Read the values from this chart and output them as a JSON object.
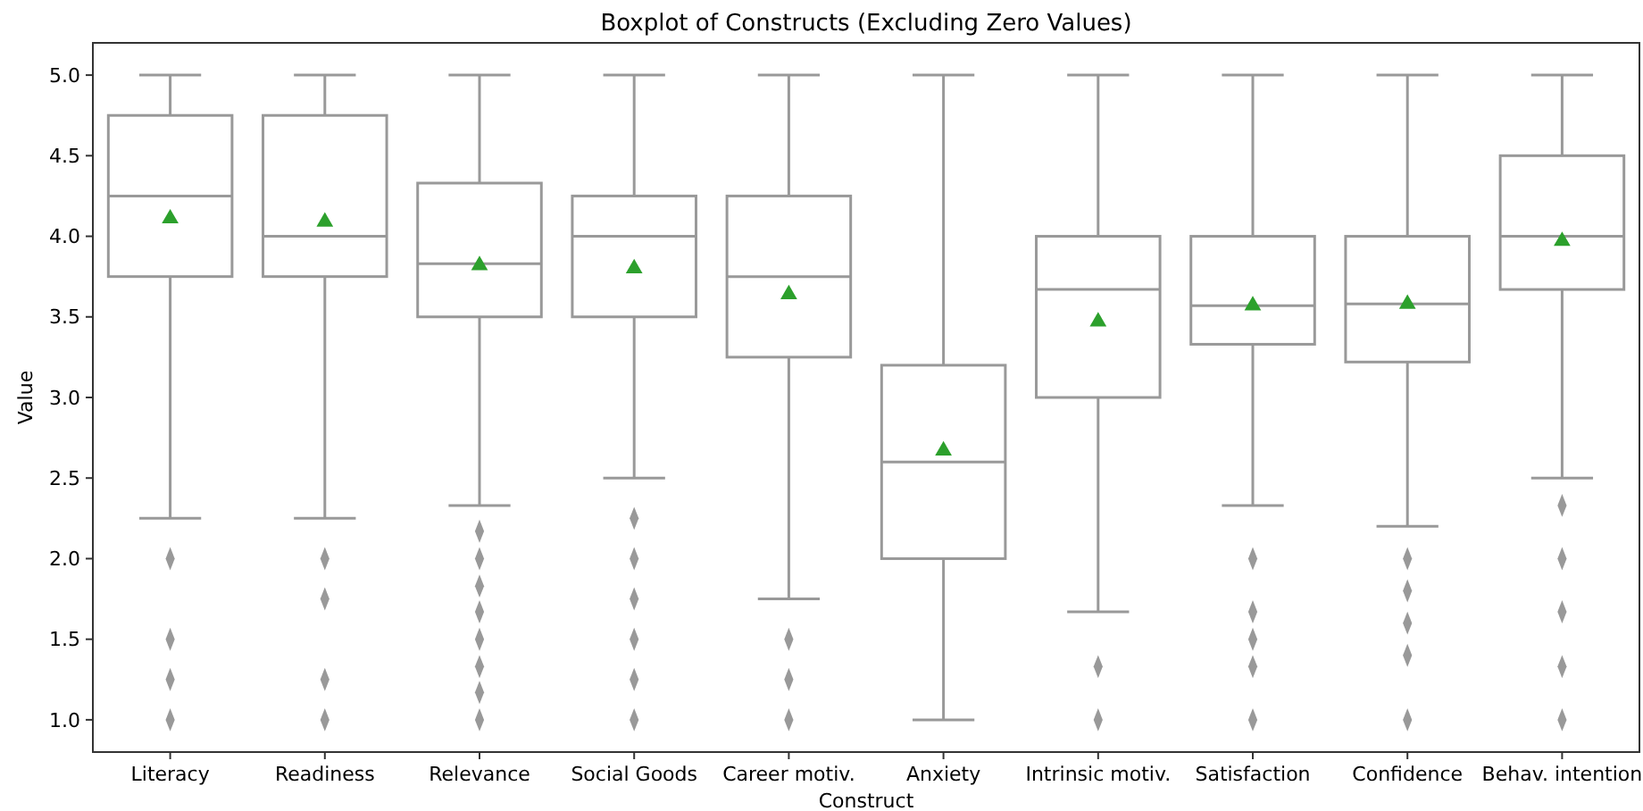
{
  "chart_data": {
    "type": "box",
    "title": "Boxplot of Constructs (Excluding Zero Values)",
    "xlabel": "Construct",
    "ylabel": "Value",
    "categories": [
      "Literacy",
      "Readiness",
      "Relevance",
      "Social Goods",
      "Career motiv.",
      "Anxiety",
      "Intrinsic motiv.",
      "Satisfaction",
      "Confidence",
      "Behav. intention"
    ],
    "ylim": [
      0.8,
      5.2
    ],
    "yticks": [
      {
        "value": 1,
        "label": "1.0"
      },
      {
        "value": 1.5,
        "label": "1.5"
      },
      {
        "value": 2,
        "label": "2.0"
      },
      {
        "value": 2.5,
        "label": "2.5"
      },
      {
        "value": 3,
        "label": "3.0"
      },
      {
        "value": 3.5,
        "label": "3.5"
      },
      {
        "value": 4,
        "label": "4.0"
      },
      {
        "value": 4.5,
        "label": "4.5"
      },
      {
        "value": 5,
        "label": "5.0"
      }
    ],
    "grid": false,
    "marker": "diamond",
    "series": [
      {
        "color": "#999999",
        "boxes": [
          {
            "low": 2.25,
            "q1": 3.75,
            "median": 4.25,
            "q3": 4.75,
            "high": 5,
            "mean": 4.11,
            "outliers": [
              2,
              1.5,
              1.25,
              1
            ]
          },
          {
            "low": 2.25,
            "q1": 3.75,
            "median": 4.0,
            "q3": 4.75,
            "high": 5,
            "mean": 4.09,
            "outliers": [
              2,
              1.75,
              1.25,
              1
            ]
          },
          {
            "low": 2.33,
            "q1": 3.5,
            "median": 3.83,
            "q3": 4.33,
            "high": 5,
            "mean": 3.82,
            "outliers": [
              2.17,
              2,
              1.83,
              1.67,
              1.5,
              1.33,
              1.17,
              1
            ]
          },
          {
            "low": 2.5,
            "q1": 3.5,
            "median": 4.0,
            "q3": 4.25,
            "high": 5,
            "mean": 3.8,
            "outliers": [
              2.25,
              2,
              1.75,
              1.5,
              1.25,
              1
            ]
          },
          {
            "low": 1.75,
            "q1": 3.25,
            "median": 3.75,
            "q3": 4.25,
            "high": 5,
            "mean": 3.64,
            "outliers": [
              1.5,
              1.25,
              1
            ]
          },
          {
            "low": 1.0,
            "q1": 2.0,
            "median": 2.6,
            "q3": 3.2,
            "high": 5,
            "mean": 2.67
          },
          {
            "low": 1.67,
            "q1": 3.0,
            "median": 3.67,
            "q3": 4.0,
            "high": 5,
            "mean": 3.47,
            "outliers": [
              1.33,
              1
            ]
          },
          {
            "low": 2.33,
            "q1": 3.33,
            "median": 3.57,
            "q3": 4.0,
            "high": 5,
            "mean": 3.57,
            "outliers": [
              2,
              1.67,
              1.5,
              1.33,
              1
            ]
          },
          {
            "low": 2.2,
            "q1": 3.22,
            "median": 3.58,
            "q3": 4.0,
            "high": 5,
            "mean": 3.58,
            "outliers": [
              2,
              1.8,
              1.6,
              1.4,
              1
            ]
          },
          {
            "low": 2.5,
            "q1": 3.67,
            "median": 4.0,
            "q3": 4.5,
            "high": 5,
            "mean": 3.97,
            "outliers": [
              2.33,
              2,
              1.67,
              1.33,
              1
            ]
          }
        ]
      }
    ]
  }
}
